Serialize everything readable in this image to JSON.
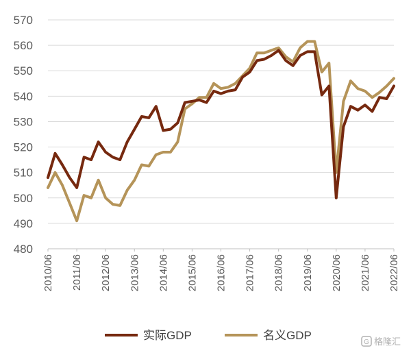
{
  "chart_data": {
    "type": "line",
    "title": "",
    "xlabel": "",
    "ylabel": "",
    "ylim": [
      480,
      570
    ],
    "yticks": [
      480,
      490,
      500,
      510,
      520,
      530,
      540,
      550,
      560,
      570
    ],
    "xticks": [
      "2010/06",
      "2011/06",
      "2012/06",
      "2013/06",
      "2014/06",
      "2015/06",
      "2016/06",
      "2017/06",
      "2018/06",
      "2019/06",
      "2020/06",
      "2021/06",
      "2022/06"
    ],
    "x_start": "2010/06",
    "x_interval_months": 3,
    "grid": "horizontal",
    "legend_position": "bottom",
    "series": [
      {
        "name": "实际GDP",
        "color": "#76290f",
        "values": [
          508,
          517.5,
          513,
          508,
          504,
          516,
          515,
          522,
          518,
          516,
          515,
          522,
          527,
          532,
          531.5,
          536,
          526.5,
          527,
          529.5,
          537.5,
          538,
          538.5,
          537.5,
          542,
          541,
          542,
          542.5,
          547.5,
          549.5,
          554,
          554.5,
          556,
          558,
          554,
          552,
          556,
          557.5,
          557.5,
          540.5,
          544,
          500,
          528,
          536,
          534.5,
          536.5,
          534,
          539.5,
          539,
          544
        ]
      },
      {
        "name": "名义GDP",
        "color": "#b59459",
        "values": [
          504,
          510,
          505,
          498,
          491,
          501,
          500,
          507,
          500,
          497.5,
          497,
          503,
          507,
          513,
          512.5,
          517,
          518,
          518,
          522,
          535,
          537,
          539.5,
          539.5,
          545,
          543,
          543.5,
          545,
          548,
          551,
          557,
          557,
          558,
          559,
          555.5,
          553.5,
          559,
          561.5,
          561.5,
          549.5,
          553,
          510,
          538,
          546,
          543,
          542,
          539.5,
          541.5,
          544,
          547
        ]
      }
    ]
  },
  "watermark": {
    "icon": "gelonghui-logo-icon",
    "text": "格隆汇"
  }
}
